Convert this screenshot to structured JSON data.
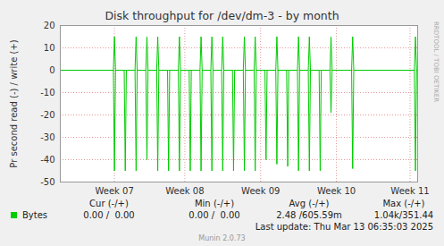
{
  "chart_data": {
    "type": "line",
    "title": "Disk throughput for /dev/dm-3 - by month",
    "y_label": "Pr second read (-) / write (+)",
    "x": [
      39,
      43.9,
      44,
      44.1,
      44.9,
      45,
      45.1,
      45.9,
      46,
      46.1,
      46.9,
      47,
      47.1,
      47.9,
      48,
      48.1,
      48.9,
      49,
      49.1,
      49.9,
      50,
      50.1,
      50.9,
      51,
      51.1,
      51.9,
      52,
      52.1,
      52.9,
      53,
      53.1,
      53.9,
      54,
      54.1,
      54.9,
      55,
      55.1,
      55.9,
      56,
      56.1,
      56.9,
      57,
      57.1,
      57.9,
      58,
      58.1,
      58.9,
      59,
      59.1,
      59.9,
      60,
      60.1,
      60.9,
      61,
      61.1,
      61.9,
      62,
      62.1,
      62.9,
      63,
      63.1,
      63.9,
      64,
      64.1,
      65.9,
      66,
      66.1,
      71.7,
      71.8,
      71.9,
      72
    ],
    "series": [
      {
        "name": "Bytes",
        "color": "#00cc00",
        "values": [
          0,
          0,
          15,
          0,
          0,
          0,
          0,
          0,
          15,
          0,
          0,
          15,
          0,
          0,
          15,
          0,
          0,
          0,
          0,
          0,
          15,
          0,
          0,
          0,
          0,
          0,
          15,
          0,
          0,
          15,
          0,
          0,
          15,
          0,
          0,
          0,
          0,
          0,
          15,
          0,
          0,
          15,
          0,
          0,
          0,
          0,
          0,
          15,
          0,
          0,
          0,
          0,
          0,
          15,
          0,
          0,
          15,
          0,
          0,
          0,
          0,
          0,
          15,
          0,
          0,
          15,
          0,
          0,
          15,
          0,
          0
        ],
        "read_values": [
          0,
          0,
          -45,
          0,
          0,
          -45,
          0,
          0,
          -45,
          0,
          0,
          -40,
          0,
          0,
          -45,
          0,
          0,
          -45,
          0,
          0,
          -45,
          0,
          0,
          -45,
          0,
          0,
          -45,
          0,
          0,
          -45,
          0,
          0,
          -45,
          0,
          0,
          -45,
          0,
          0,
          -45,
          0,
          0,
          -45,
          0,
          0,
          -40,
          0,
          0,
          -42,
          0,
          0,
          -43,
          0,
          0,
          -45,
          0,
          0,
          -45,
          0,
          0,
          -45,
          0,
          0,
          -19,
          0,
          0,
          -44,
          0,
          0,
          -45,
          0,
          0
        ]
      }
    ],
    "xlim": [
      39,
      72
    ],
    "xticks": [
      {
        "value": 44,
        "label": "Week 07"
      },
      {
        "value": 50.5,
        "label": "Week 08"
      },
      {
        "value": 57.5,
        "label": "Week 09"
      },
      {
        "value": 64.5,
        "label": "Week 10"
      },
      {
        "value": 71.3,
        "label": "Week 11"
      }
    ],
    "ylim": [
      -50,
      20
    ],
    "yticks": [
      -50,
      -40,
      -30,
      -20,
      -10,
      0,
      10,
      20
    ],
    "grid": true,
    "summary": {
      "columns": [
        "Cur (-/+)",
        "Min (-/+)",
        "Avg (-/+)",
        "Max (-/+)"
      ],
      "rows": [
        {
          "name": "Bytes",
          "values": [
            "0.00 /  0.00",
            "0.00 /  0.00",
            "2.48 /605.59m",
            "1.04k/351.44"
          ]
        }
      ]
    },
    "footer": "Last update: Thu Mar 13 06:35:03 2025",
    "credit": "Munin 2.0.73",
    "watermark": "RRDTOOL / TOBI OETIKER"
  }
}
